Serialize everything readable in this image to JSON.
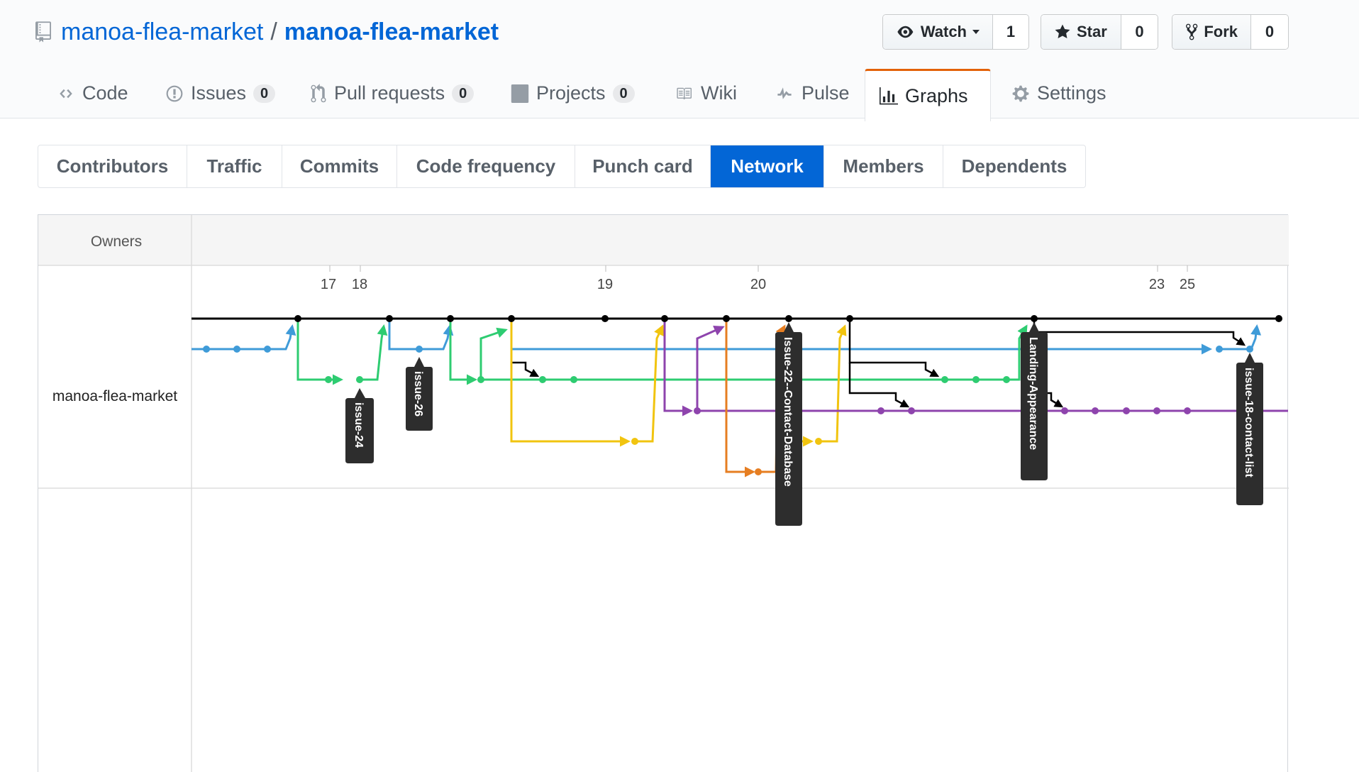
{
  "repo": {
    "owner": "manoa-flea-market",
    "separator": "/",
    "name": "manoa-flea-market"
  },
  "actions": {
    "watch": {
      "label": "Watch",
      "count": "1"
    },
    "star": {
      "label": "Star",
      "count": "0"
    },
    "fork": {
      "label": "Fork",
      "count": "0"
    }
  },
  "tabs": [
    {
      "label": "Code"
    },
    {
      "label": "Issues",
      "count": "0"
    },
    {
      "label": "Pull requests",
      "count": "0"
    },
    {
      "label": "Projects",
      "count": "0"
    },
    {
      "label": "Wiki"
    },
    {
      "label": "Pulse"
    },
    {
      "label": "Graphs",
      "selected": true
    },
    {
      "label": "Settings"
    }
  ],
  "subnav": [
    "Contributors",
    "Traffic",
    "Commits",
    "Code frequency",
    "Punch card",
    "Network",
    "Members",
    "Dependents"
  ],
  "subnav_selected": "Network",
  "network": {
    "owners_label": "Owners",
    "repo_label": "manoa-flea-market",
    "dates": [
      "17",
      "18",
      "19",
      "20",
      "23",
      "25"
    ],
    "branch_labels": [
      "issue-24",
      "issue-26",
      "Issue-22--Contact-Database",
      "Landing-Appearance",
      "issue-18-contact-list"
    ],
    "colors": {
      "master": "#000000",
      "blue": "#3f9bd8",
      "green": "#2ecc71",
      "yellow": "#f1c40f",
      "purple": "#8e44ad",
      "orange": "#e67e22"
    }
  }
}
